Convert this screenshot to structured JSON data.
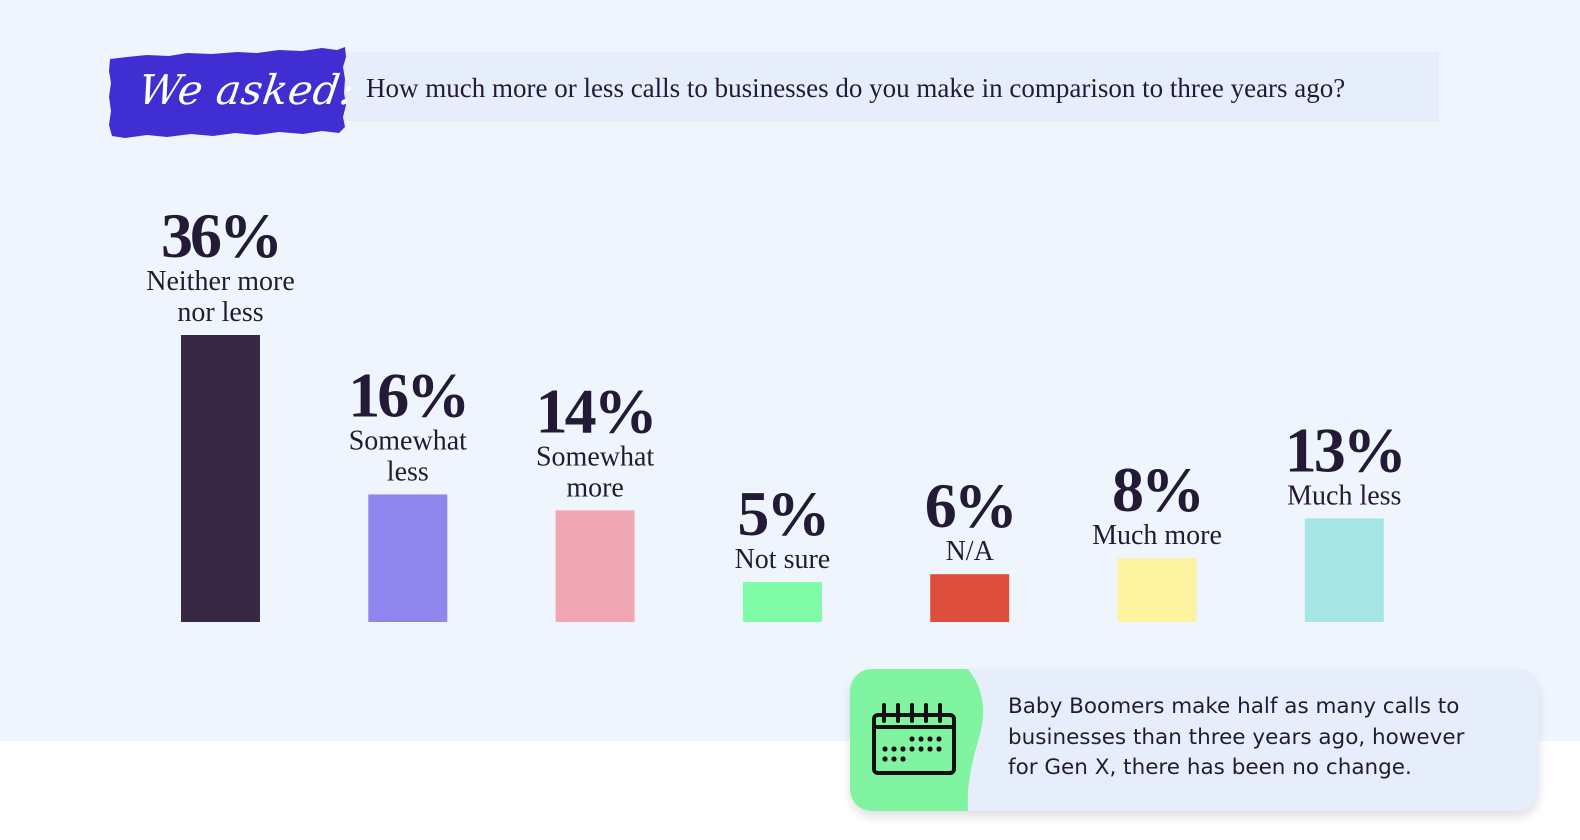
{
  "header": {
    "tag": "We asked:",
    "question": "How much more or less calls to businesses do you make in comparison to three years ago?",
    "tag_color": "#3f2ed2"
  },
  "chart_data": {
    "type": "bar",
    "categories": [
      "Neither more nor less",
      "Somewhat less",
      "Somewhat more",
      "Not sure",
      "N/A",
      "Much more",
      "Much less"
    ],
    "label_lines": [
      [
        "Neither more",
        "nor less"
      ],
      [
        "Somewhat",
        "less"
      ],
      [
        "Somewhat",
        "more"
      ],
      [
        "Not sure"
      ],
      [
        "N/A"
      ],
      [
        "Much more"
      ],
      [
        "Much less"
      ]
    ],
    "values": [
      36,
      16,
      14,
      5,
      6,
      8,
      13
    ],
    "value_labels": [
      "36%",
      "16%",
      "14%",
      "5%",
      "6%",
      "8%",
      "13%"
    ],
    "colors": [
      "#372844",
      "#8e86ec",
      "#f1a6b3",
      "#80fba8",
      "#dd4e3d",
      "#fcf3a1",
      "#a5e6e4"
    ],
    "unit": "%",
    "ylim": [
      0,
      36
    ],
    "grid": false,
    "legend": "none"
  },
  "note": {
    "icon": "calendar-icon",
    "icon_bg_color": "#80f3a0",
    "text": "Baby Boomers make half as many calls to businesses than three years ago, however for Gen X, there has been no change."
  }
}
